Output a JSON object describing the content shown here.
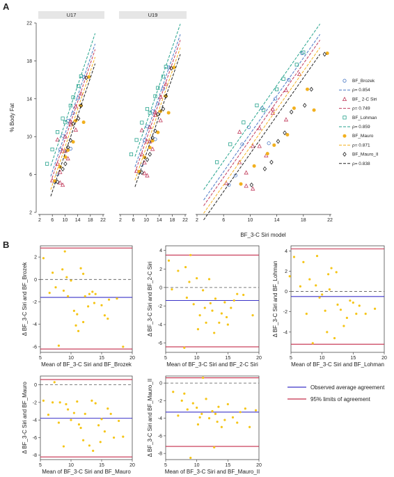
{
  "figure": {
    "panel_a_letter": "A",
    "panel_b_letter": "B",
    "colors": {
      "brozek": "#4a78c4",
      "siri2c": "#c0395a",
      "lohman": "#24a28c",
      "mauro": "#f2b01e",
      "mauro2": "#222222",
      "mean_line": "#3b33c8",
      "loa_line": "#c42c4a",
      "point": "#f5c518"
    }
  },
  "chart_data": [
    {
      "type": "scatter",
      "panel": "A",
      "facets": [
        "U17",
        "U19",
        ""
      ],
      "xlabel": "BF_3-C Siri model",
      "ylabel": "% Body Fat",
      "ylim": [
        2,
        22
      ],
      "yticks": [
        2,
        6,
        10,
        14,
        18,
        22
      ],
      "facet_xticks": [
        [
          2,
          6,
          10,
          14,
          18,
          22
        ],
        [
          2,
          6,
          10,
          14,
          18,
          22
        ],
        [
          2,
          6,
          10,
          14,
          18,
          22
        ]
      ],
      "legend": {
        "placement": "right",
        "entries": [
          {
            "label": "BF_Brozek",
            "kind": "point",
            "series": "brozek"
          },
          {
            "label": "ρ= 0.854",
            "kind": "line",
            "series": "brozek"
          },
          {
            "label": "BF_ 2-C Siri",
            "kind": "point",
            "series": "siri2c"
          },
          {
            "label": "ρ= 0.749",
            "kind": "line",
            "series": "siri2c"
          },
          {
            "label": "BF_Lohman",
            "kind": "point",
            "series": "lohman"
          },
          {
            "label": "ρ= 0.859",
            "kind": "line",
            "series": "lohman"
          },
          {
            "label": "BF_Mauro",
            "kind": "point",
            "series": "mauro"
          },
          {
            "label": "ρ= 0.871",
            "kind": "line",
            "series": "mauro"
          },
          {
            "label": "BF_Mauro_II",
            "kind": "point",
            "series": "mauro2"
          },
          {
            "label": "ρ= 0.838",
            "kind": "line",
            "series": "mauro2"
          }
        ]
      },
      "series": [
        {
          "name": "BF_Brozek",
          "key": "brozek",
          "marker": "circle",
          "rho": "ρ= 0.854",
          "offset": 0.3,
          "x": [
            8,
            10,
            13,
            15,
            17,
            11,
            19,
            14,
            9
          ],
          "y": [
            4.9,
            9.2,
            13,
            14,
            16,
            11,
            18.8,
            9.3,
            5.9
          ]
        },
        {
          "name": "BF_ 2-C Siri",
          "key": "siri2c",
          "marker": "triangle",
          "rho": "ρ= 0.749",
          "offset": -0.3,
          "x": [
            7,
            9,
            12,
            14,
            16,
            18,
            11,
            10
          ],
          "y": [
            5.1,
            7.3,
            10.9,
            12.5,
            14.9,
            16.6,
            9,
            4.8
          ],
          "x2": [
            10,
            12,
            14,
            11,
            9,
            16,
            13
          ],
          "y2": [
            6.2,
            9,
            12.9,
            4.5,
            10.5,
            11.8,
            8
          ]
        },
        {
          "name": "BF_Lohman",
          "key": "lohman",
          "marker": "square",
          "rho": "ρ= 0.859",
          "offset": 1.4,
          "x": [
            5,
            7,
            9,
            11,
            12,
            14,
            15,
            17,
            18
          ],
          "y": [
            7.3,
            9.2,
            11.5,
            13.3,
            12.8,
            15,
            16.1,
            17.6,
            18.9
          ]
        },
        {
          "name": "BF_Mauro",
          "key": "mauro",
          "marker": "filled-circle",
          "rho": "ρ= 0.871",
          "offset": -1.1,
          "x": [
            8,
            10,
            12,
            13,
            15,
            16,
            18,
            19,
            21
          ],
          "y": [
            5,
            6.9,
            8.2,
            9.1,
            10.2,
            13,
            15,
            12.8,
            18.8
          ]
        },
        {
          "name": "BF_Mauro_II",
          "key": "mauro2",
          "marker": "diamond",
          "rho": "ρ= 0.838",
          "offset": -1.8,
          "x": [
            9,
            11,
            12,
            13,
            14,
            15,
            17,
            18,
            20
          ],
          "y": [
            4.9,
            6.6,
            7.3,
            9.5,
            10.4,
            12.6,
            13.3,
            15,
            18.7
          ]
        }
      ]
    },
    {
      "type": "scatter",
      "panel": "B",
      "subtype": "bland-altman",
      "plots": [
        {
          "xlabel": "Mean of BF_3-C Siri and BF_Brozek",
          "ylabel": "Δ BF_3-C Siri and BF_Brozek",
          "xlim": [
            5,
            20
          ],
          "xticks": [
            5,
            10,
            15,
            20
          ],
          "ylim": [
            -6.5,
            3
          ],
          "yticks": [
            -6,
            -4,
            -2,
            0,
            2
          ],
          "mean": -1.6,
          "loa": [
            -6.2,
            2.8
          ],
          "x": [
            5.5,
            6.5,
            7,
            8,
            8.6,
            8.8,
            9,
            9.5,
            10,
            10.5,
            11,
            11.2,
            11.6,
            12,
            12,
            12.3,
            13,
            13.5,
            14,
            15,
            15.5,
            16,
            16.2,
            17.5,
            18.5,
            7.5,
            9.3,
            10.8,
            12.8,
            13.8
          ],
          "y": [
            1.9,
            -1.2,
            0.6,
            -5.9,
            0.9,
            -1,
            2.5,
            -1.5,
            -0.1,
            -2.8,
            -3.1,
            -4.6,
            1,
            -3.8,
            0.5,
            -1.5,
            -1.3,
            -1.1,
            -1.3,
            -2.3,
            -3.2,
            -3.5,
            -1.8,
            -1.7,
            -6,
            -0.7,
            0.2,
            -4.1,
            -2.4,
            -2.1
          ]
        },
        {
          "xlabel": "Mean of BF_3-C Siri and BF_2-C Siri",
          "ylabel": "Δ BF_3-C Siri and BF_2-C Siri",
          "xlim": [
            5,
            20
          ],
          "xticks": [
            5,
            10,
            15,
            20
          ],
          "ylim": [
            -7,
            4.5
          ],
          "yticks": [
            -6,
            -4,
            -2,
            0,
            2,
            4
          ],
          "mean": -1.4,
          "loa": [
            -6.4,
            3.5
          ],
          "x": [
            5.5,
            6,
            7,
            8,
            8.2,
            8.8,
            9,
            9.5,
            10,
            10.5,
            11,
            11.3,
            11.5,
            12,
            12.5,
            12.8,
            13,
            13.6,
            14,
            14.5,
            15,
            15.5,
            16,
            16.5,
            17.5,
            19,
            8.4,
            10.2,
            12.2,
            14.8
          ],
          "y": [
            2.9,
            -0.2,
            1.8,
            -6.5,
            2.2,
            0.6,
            3.5,
            -1.8,
            1,
            -3,
            -0.3,
            -2.2,
            -3.8,
            0.9,
            -2.5,
            -4.9,
            -1.2,
            -3.8,
            -2.8,
            -1.6,
            -4,
            -2.2,
            -1.4,
            -0.7,
            -0.8,
            -3,
            -1.1,
            -4.5,
            -1.7,
            -3.2
          ]
        },
        {
          "xlabel": "Mean of BF_3-C Siri and BF_Lohman",
          "ylabel": "Δ BF_3-C Siri and BF_Lohman",
          "xlim": [
            5,
            20
          ],
          "xticks": [
            5,
            10,
            15,
            20
          ],
          "ylim": [
            -6,
            4.5
          ],
          "yticks": [
            -4,
            -2,
            0,
            2,
            4
          ],
          "mean": -0.5,
          "loa": [
            -5.2,
            4.2
          ],
          "x": [
            4.8,
            5.5,
            6.5,
            7,
            7.5,
            8,
            8.5,
            9,
            9.2,
            10,
            10.5,
            11,
            11.2,
            11.5,
            12,
            12.5,
            13,
            13.5,
            14,
            14.5,
            15,
            15.5,
            16,
            17,
            18.5,
            9.6,
            10.8,
            12.3
          ],
          "y": [
            1.5,
            3.4,
            0.5,
            2.9,
            -2.2,
            1.2,
            -5.1,
            0.6,
            3.5,
            -0.3,
            -1.9,
            1.7,
            0.2,
            2.3,
            -4.6,
            -1.3,
            -1.8,
            -3.4,
            -2.6,
            -0.9,
            -1.1,
            -2.2,
            -1.4,
            -2.2,
            -1.7,
            -0.6,
            -4,
            1.9
          ]
        },
        {
          "xlabel": "Mean of BF_3-C Siri and BF_Mauro",
          "ylabel": "Δ BF_3-C Siri and BF_Mauro",
          "xlim": [
            5,
            20
          ],
          "xticks": [
            5,
            10,
            15,
            20
          ],
          "ylim": [
            -8.5,
            1
          ],
          "yticks": [
            -8,
            -6,
            -4,
            -2,
            0
          ],
          "mean": -3.8,
          "loa": [
            -8.2,
            0.6
          ],
          "x": [
            5.5,
            6.3,
            7,
            7.3,
            8,
            8.2,
            8.8,
            9.5,
            10,
            10.5,
            11,
            11.6,
            12,
            12.3,
            13,
            13.4,
            13.6,
            14,
            14.5,
            15,
            15.5,
            16,
            16.5,
            17,
            17.8,
            18.5,
            9.2,
            11.3,
            14.8
          ],
          "y": [
            -1.8,
            -3.4,
            -2,
            0.3,
            -4.3,
            -2,
            -7,
            -2.8,
            -4,
            -3.2,
            -1.9,
            -4.9,
            -6.3,
            -3.3,
            -6.9,
            -1.8,
            -7.5,
            -2.1,
            -4.6,
            -3.9,
            -5.3,
            -2.7,
            -3.3,
            -6,
            -4.1,
            -5.9,
            -2.2,
            -4.5,
            -6.5
          ]
        },
        {
          "xlabel": "Mean of BF_3-C Siri and BF_Mauro_II",
          "ylabel": "Δ BF_3-C Siri and BF_Mauro_II",
          "xlim": [
            5,
            20
          ],
          "xticks": [
            5,
            10,
            15,
            20
          ],
          "ylim": [
            -8.7,
            0.8
          ],
          "yticks": [
            -8,
            -6,
            -4,
            -2,
            0
          ],
          "mean": -3.3,
          "loa": [
            -7.2,
            0.6
          ],
          "x": [
            6.2,
            7,
            7.6,
            8,
            8.5,
            9,
            9.4,
            10,
            10.2,
            10.8,
            11,
            11.5,
            12,
            12.5,
            12.8,
            13,
            13.5,
            14,
            14.5,
            15,
            15.8,
            16.5,
            17,
            17.8,
            18.5,
            19.5,
            10.5,
            13.3
          ],
          "y": [
            -1,
            -3.7,
            -2,
            -1.2,
            -3,
            -8.5,
            -2.3,
            -2.8,
            -4.7,
            -3.5,
            0.6,
            -1.8,
            -4,
            -3.2,
            -7.3,
            -3.5,
            -2.7,
            -5,
            -4.2,
            -2.4,
            -3.9,
            -4.5,
            -3.3,
            -2.9,
            -5,
            -3.1,
            -3.9,
            -4.4
          ]
        }
      ],
      "legend": {
        "placement": "bottom-right",
        "entries": [
          {
            "label": "Observed average agreement",
            "series": "mean_line"
          },
          {
            "label": "95% limits of agreement",
            "series": "loa_line"
          }
        ]
      }
    }
  ]
}
